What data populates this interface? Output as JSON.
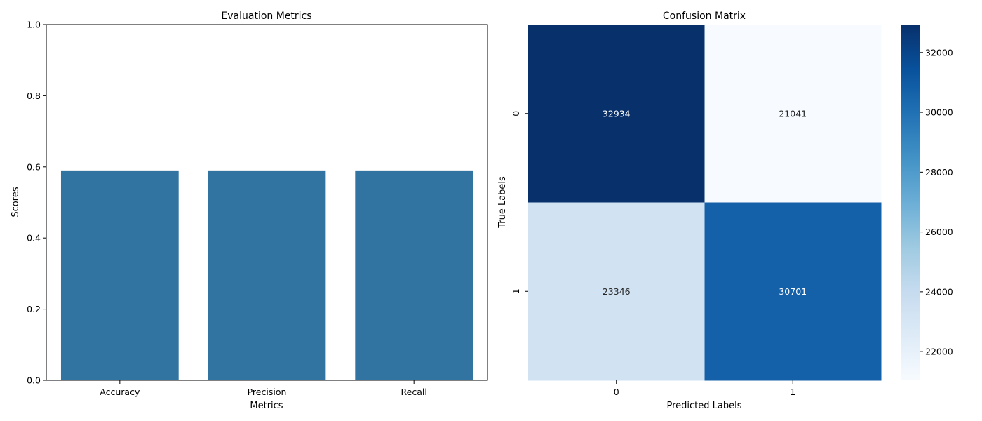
{
  "chart_data": [
    {
      "type": "bar",
      "title": "Evaluation Metrics",
      "xlabel": "Metrics",
      "ylabel": "Scores",
      "categories": [
        "Accuracy",
        "Precision",
        "Recall"
      ],
      "values": [
        0.59,
        0.59,
        0.59
      ],
      "ylim": [
        0,
        1
      ],
      "yticks": [
        "0.0",
        "0.2",
        "0.4",
        "0.6",
        "0.8",
        "1.0"
      ],
      "bar_color": "#3274a1",
      "grid": false,
      "legend": "none"
    },
    {
      "type": "heatmap",
      "title": "Confusion Matrix",
      "xlabel": "Predicted Labels",
      "ylabel": "True Labels",
      "x_categories": [
        "0",
        "1"
      ],
      "y_categories": [
        "0",
        "1"
      ],
      "values": [
        [
          32934,
          21041
        ],
        [
          23346,
          30701
        ]
      ],
      "value_labels": [
        [
          "32934",
          "21041"
        ],
        [
          "23346",
          "30701"
        ]
      ],
      "colormap": "Blues",
      "colorbar": {
        "range": [
          21041,
          32934
        ],
        "ticks": [
          22000,
          24000,
          26000,
          28000,
          30000,
          32000
        ],
        "tick_labels": [
          "22000",
          "24000",
          "26000",
          "28000",
          "30000",
          "32000"
        ]
      }
    }
  ]
}
